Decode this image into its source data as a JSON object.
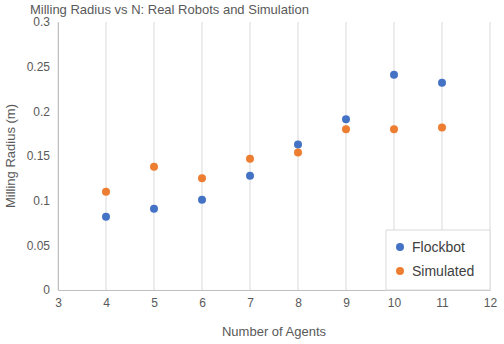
{
  "chart_data": {
    "type": "scatter",
    "title": "Milling Radius vs N: Real Robots and Simulation",
    "x_label": "Number of Agents",
    "y_label": "Milling Radius (m)",
    "x": [
      4,
      5,
      6,
      7,
      8,
      9,
      10,
      11
    ],
    "series": [
      {
        "name": "Flockbot",
        "color": "#4472c4",
        "marker": "circle",
        "values": [
          0.082,
          0.091,
          0.101,
          0.128,
          0.163,
          0.191,
          0.241,
          0.232
        ]
      },
      {
        "name": "Simulated",
        "color": "#ed7d31",
        "marker": "circle",
        "values": [
          0.11,
          0.138,
          0.125,
          0.147,
          0.154,
          0.18,
          0.18,
          0.182
        ]
      }
    ],
    "xlim": [
      3,
      12
    ],
    "xticks": [
      3,
      4,
      5,
      6,
      7,
      8,
      9,
      10,
      11,
      12
    ],
    "ylim": [
      0,
      0.3
    ],
    "yticks": [
      0,
      0.05,
      0.1,
      0.15,
      0.2,
      0.25,
      0.3
    ],
    "grid": "x",
    "legend": "lower right"
  }
}
